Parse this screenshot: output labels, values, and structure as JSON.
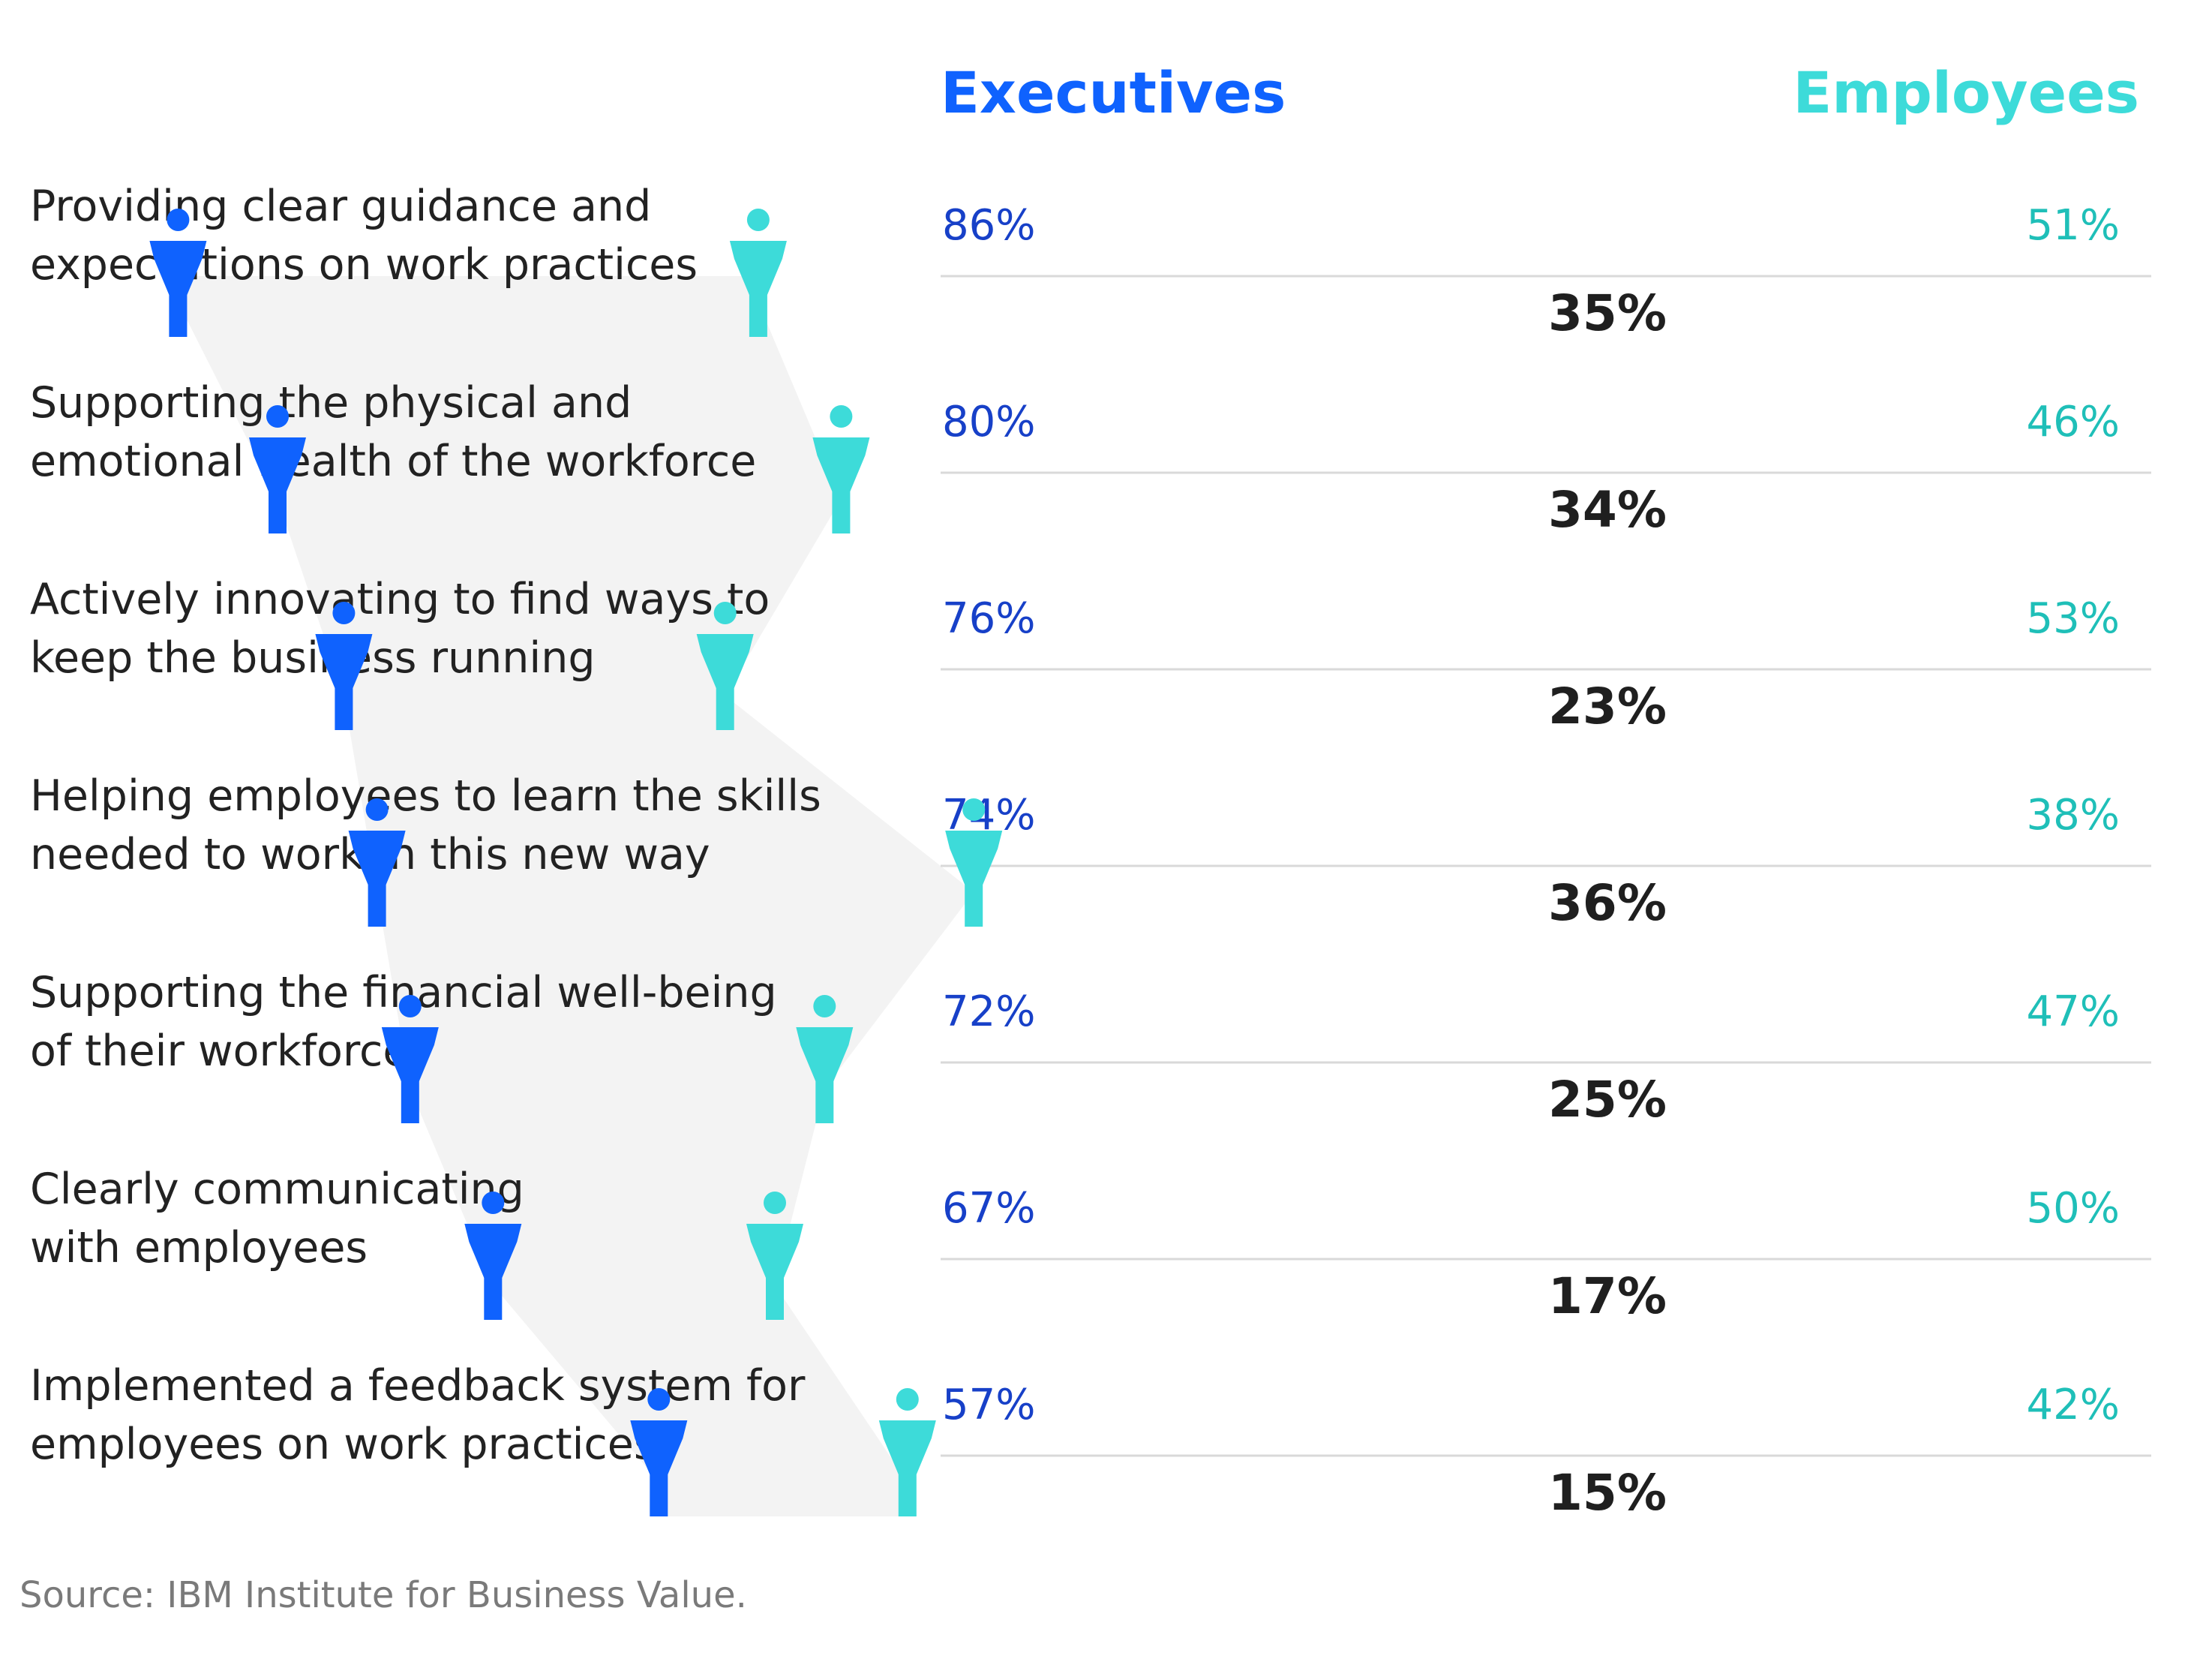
{
  "chart_data": {
    "type": "dumbbell",
    "series": [
      {
        "name": "Executives",
        "color": "#0f62fe",
        "values": [
          86,
          80,
          76,
          74,
          72,
          67,
          57
        ]
      },
      {
        "name": "Employees",
        "color": "#3ddbd9",
        "values": [
          51,
          46,
          53,
          38,
          47,
          50,
          42
        ]
      }
    ],
    "categories": [
      [
        "Providing clear guidance and",
        "expectations on work practices"
      ],
      [
        "Supporting the physical and",
        "emotional health of the workforce"
      ],
      [
        "Actively innovating to find ways to",
        "keep the business running"
      ],
      [
        "Helping employees to learn the skills",
        "needed to work in this new way"
      ],
      [
        "Supporting the financial well-being",
        "of their workforce"
      ],
      [
        "Clearly communicating",
        "with employees"
      ],
      [
        "Implemented a feedback system for",
        "employees on work practices"
      ]
    ],
    "executives_labels": [
      "86%",
      "80%",
      "76%",
      "74%",
      "72%",
      "67%",
      "57%"
    ],
    "employees_labels": [
      "51%",
      "46%",
      "53%",
      "38%",
      "47%",
      "50%",
      "42%"
    ],
    "gap_labels": [
      "35%",
      "34%",
      "23%",
      "36%",
      "25%",
      "17%",
      "15%"
    ],
    "gaps": [
      35,
      34,
      23,
      36,
      25,
      17,
      15
    ],
    "exec_pct_color": "#1740c8",
    "emp_pct_color": "#1fbfb8",
    "band_color": "#f3f3f3",
    "line_color": "#d9d9d9"
  },
  "source": "Source: IBM Institute for Business Value."
}
